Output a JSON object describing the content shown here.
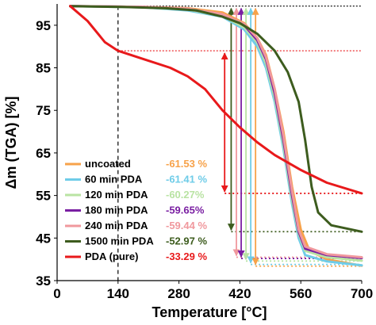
{
  "chart_data": {
    "type": "line",
    "title": "",
    "xlabel": "Temperature [°C]",
    "ylabel": "Δm (TGA) [%]",
    "xlim": [
      0,
      700
    ],
    "ylim": [
      35,
      100
    ],
    "xticks": [
      "0",
      "140",
      "280",
      "420",
      "560",
      "700"
    ],
    "yticks": [
      "35",
      "45",
      "55",
      "65",
      "75",
      "85",
      "95"
    ],
    "grid": false,
    "legend_position": "bottom-left",
    "series": [
      {
        "name": "uncoated",
        "value_label": "-61.53 %",
        "color": "#f7a24a",
        "x": [
          30,
          200,
          300,
          380,
          430,
          460,
          480,
          500,
          520,
          540,
          560,
          580,
          620,
          700
        ],
        "y": [
          99.5,
          99.3,
          99,
          98,
          95.5,
          92,
          88,
          80,
          70,
          57,
          47,
          42,
          40,
          38.5
        ]
      },
      {
        "name": "60 min PDA",
        "value_label": "-61.41 %",
        "color": "#6fcce8",
        "x": [
          30,
          200,
          300,
          380,
          430,
          460,
          480,
          500,
          520,
          540,
          555,
          570,
          620,
          700
        ],
        "y": [
          99.5,
          99.2,
          98.5,
          97,
          94,
          90,
          85,
          77,
          66,
          53,
          45,
          41,
          39.5,
          38.6
        ]
      },
      {
        "name": "120 min PDA",
        "value_label": "-60.27%",
        "color": "#b9e3a3",
        "x": [
          30,
          200,
          300,
          380,
          430,
          460,
          480,
          500,
          520,
          540,
          555,
          570,
          620,
          700
        ],
        "y": [
          99.5,
          99.2,
          98.7,
          97.2,
          94.5,
          91,
          86,
          78,
          67,
          54,
          46,
          42,
          40.5,
          39.7
        ]
      },
      {
        "name": "180 min PDA",
        "value_label": "-59.65%",
        "color": "#7a1fa2",
        "x": [
          30,
          200,
          300,
          380,
          430,
          460,
          480,
          500,
          520,
          540,
          555,
          570,
          620,
          700
        ],
        "y": [
          99.5,
          99.3,
          98.8,
          97.4,
          95,
          91.5,
          87,
          79,
          68,
          55,
          46.5,
          42.5,
          41,
          40.3
        ]
      },
      {
        "name": "240 min PDA",
        "value_label": "-59.44 %",
        "color": "#f0989d",
        "x": [
          30,
          200,
          300,
          380,
          430,
          460,
          480,
          500,
          520,
          540,
          555,
          570,
          620,
          700
        ],
        "y": [
          99.5,
          99.3,
          98.9,
          97.6,
          95.3,
          92,
          87.5,
          80,
          69,
          56,
          47,
          43,
          41.2,
          40.5
        ]
      },
      {
        "name": "1500 min PDA",
        "value_label": "-52.97 %",
        "color": "#3d5c1e",
        "x": [
          30,
          150,
          250,
          320,
          380,
          420,
          460,
          500,
          530,
          555,
          570,
          585,
          600,
          630,
          700
        ],
        "y": [
          99.5,
          99.3,
          99,
          98.5,
          97,
          95.5,
          93,
          89,
          84,
          77,
          68,
          57,
          51,
          48,
          46.5
        ]
      },
      {
        "name": "PDA (pure)",
        "value_label": "-33.29 %",
        "color": "#e8191b",
        "x": [
          30,
          70,
          110,
          140,
          200,
          260,
          300,
          340,
          380,
          420,
          460,
          500,
          560,
          620,
          700
        ],
        "y": [
          99.5,
          96,
          91,
          89,
          87,
          85,
          83,
          80,
          75,
          71,
          67.5,
          64.5,
          61,
          58,
          55.5
        ]
      }
    ],
    "annotations": {
      "pda_onset_x": 140,
      "pda_onset_y": 89,
      "reference_top_y": 99.5,
      "residue_levels": [
        {
          "series": "PDA (pure)",
          "y": 55.5,
          "x_arrow": 385,
          "color": "#e8191b"
        },
        {
          "series": "1500 min PDA",
          "y": 46.5,
          "x_arrow": 400,
          "color": "#3d5c1e"
        },
        {
          "series": "240 min PDA",
          "y": 40.5,
          "x_arrow": 412,
          "color": "#f0989d"
        },
        {
          "series": "180 min PDA",
          "y": 40.2,
          "x_arrow": 423,
          "color": "#7a1fa2"
        },
        {
          "series": "120 min PDA",
          "y": 39.6,
          "x_arrow": 434,
          "color": "#b9e3a3"
        },
        {
          "series": "60 min PDA",
          "y": 38.8,
          "x_arrow": 445,
          "color": "#6fcce8"
        },
        {
          "series": "uncoated",
          "y": 38.4,
          "x_arrow": 456,
          "color": "#f7a24a"
        }
      ]
    }
  }
}
